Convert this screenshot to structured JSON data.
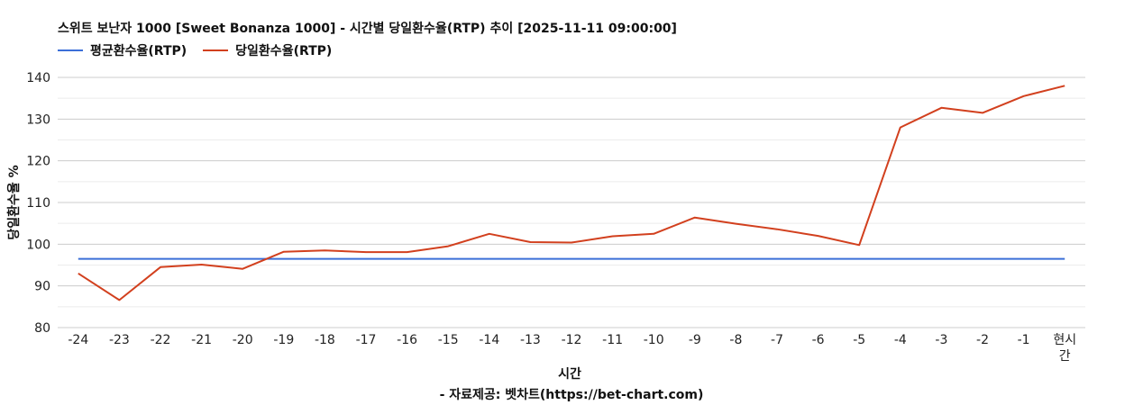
{
  "chart_data": {
    "type": "line",
    "title": "스위트 보난자 1000 [Sweet Bonanza 1000] - 시간별 당일환수율(RTP) 추이 [2025-11-11 09:00:00]",
    "xlabel": "시간",
    "ylabel": "당일환수율 %",
    "footer": "- 자료제공: 벳차트(https://bet-chart.com)",
    "categories": [
      "-24",
      "-23",
      "-22",
      "-21",
      "-20",
      "-19",
      "-18",
      "-17",
      "-16",
      "-15",
      "-14",
      "-13",
      "-12",
      "-11",
      "-10",
      "-9",
      "-8",
      "-7",
      "-6",
      "-5",
      "-4",
      "-3",
      "-2",
      "-1",
      "현시간"
    ],
    "series": [
      {
        "name": "평균환수율(RTP)",
        "color": "#3b6fd8",
        "values": [
          96.5,
          96.5,
          96.5,
          96.5,
          96.5,
          96.5,
          96.5,
          96.5,
          96.5,
          96.5,
          96.5,
          96.5,
          96.5,
          96.5,
          96.5,
          96.5,
          96.5,
          96.5,
          96.5,
          96.5,
          96.5,
          96.5,
          96.5,
          96.5,
          96.5
        ]
      },
      {
        "name": "당일환수율(RTP)",
        "color": "#d2401e",
        "values": [
          93.0,
          86.6,
          94.5,
          95.1,
          94.1,
          98.2,
          98.5,
          98.1,
          98.1,
          99.5,
          102.5,
          100.5,
          100.4,
          101.9,
          102.5,
          106.4,
          104.9,
          103.6,
          102.0,
          99.8,
          128.0,
          132.7,
          131.5,
          135.5,
          138.0
        ]
      }
    ],
    "ylim": [
      80,
      140
    ],
    "yticks": [
      80,
      90,
      100,
      110,
      120,
      130,
      140
    ],
    "grid": true,
    "legend_position": "top-left"
  }
}
